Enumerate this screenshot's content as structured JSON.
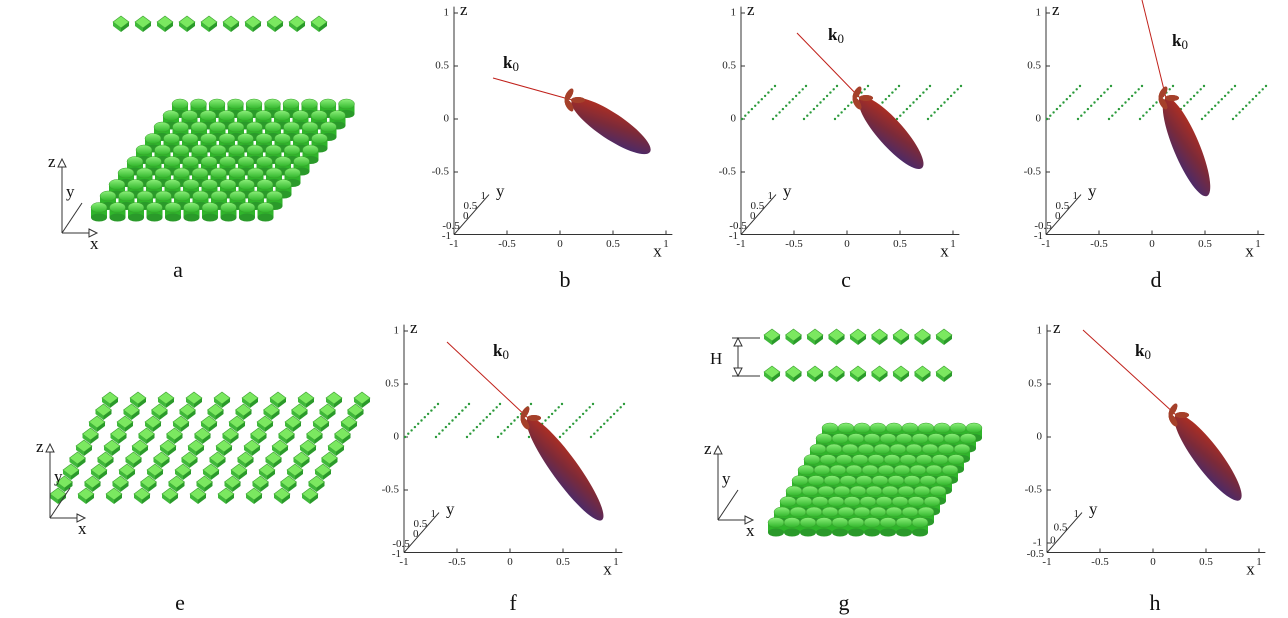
{
  "panels": [
    {
      "label": "a",
      "axis_labels": {
        "x": "x",
        "y": "y",
        "z": "z"
      }
    },
    {
      "label": "b",
      "axis_labels": {
        "x": "x",
        "y": "y",
        "z": "z"
      },
      "x_ticks": [
        "-1",
        "-0.5",
        "0",
        "0.5",
        "1"
      ],
      "y_ticks": [
        "1",
        "0.5",
        "0",
        "-0.5",
        "-1"
      ],
      "z_ticks": [
        "1",
        "0.5",
        "0",
        "-0.5"
      ],
      "beam_label": {
        "symbol": "k",
        "subscript": "0"
      }
    },
    {
      "label": "c",
      "axis_labels": {
        "x": "x",
        "y": "y",
        "z": "z"
      },
      "x_ticks": [
        "-1",
        "-0.5",
        "0",
        "0.5",
        "1"
      ],
      "y_ticks": [
        "1",
        "0.5",
        "0",
        "-0.5",
        "-1"
      ],
      "z_ticks": [
        "1",
        "0.5",
        "0",
        "-0.5"
      ],
      "beam_label": {
        "symbol": "k",
        "subscript": "0"
      }
    },
    {
      "label": "d",
      "axis_labels": {
        "x": "x",
        "y": "y",
        "z": "z"
      },
      "x_ticks": [
        "-1",
        "-0.5",
        "0",
        "0.5",
        "1"
      ],
      "y_ticks": [
        "1",
        "0.5",
        "0",
        "-0.5",
        "-1"
      ],
      "z_ticks": [
        "1",
        "0.5",
        "0",
        "-0.5"
      ],
      "beam_label": {
        "symbol": "k",
        "subscript": "0"
      }
    },
    {
      "label": "e",
      "axis_labels": {
        "x": "x",
        "y": "y",
        "z": "z"
      }
    },
    {
      "label": "f",
      "axis_labels": {
        "x": "x",
        "y": "y",
        "z": "z"
      },
      "x_ticks": [
        "-1",
        "-0.5",
        "0",
        "0.5",
        "1"
      ],
      "y_ticks": [
        "1",
        "0.5",
        "0",
        "-0.5",
        "-1"
      ],
      "z_ticks": [
        "1",
        "0.5",
        "0",
        "-0.5"
      ],
      "beam_label": {
        "symbol": "k",
        "subscript": "0"
      }
    },
    {
      "label": "g",
      "axis_labels": {
        "x": "x",
        "y": "y",
        "z": "z"
      },
      "spacing_label": "H"
    },
    {
      "label": "h",
      "axis_labels": {
        "x": "x",
        "y": "y",
        "z": "z"
      },
      "x_ticks": [
        "-1",
        "-0.5",
        "0",
        "0.5",
        "1"
      ],
      "y_ticks": [
        "1",
        "0.5",
        "0",
        "-0.5"
      ],
      "z_ticks": [
        "1",
        "0.5",
        "0",
        "-0.5",
        "-1"
      ],
      "beam_label": {
        "symbol": "k",
        "subscript": "0"
      }
    }
  ]
}
